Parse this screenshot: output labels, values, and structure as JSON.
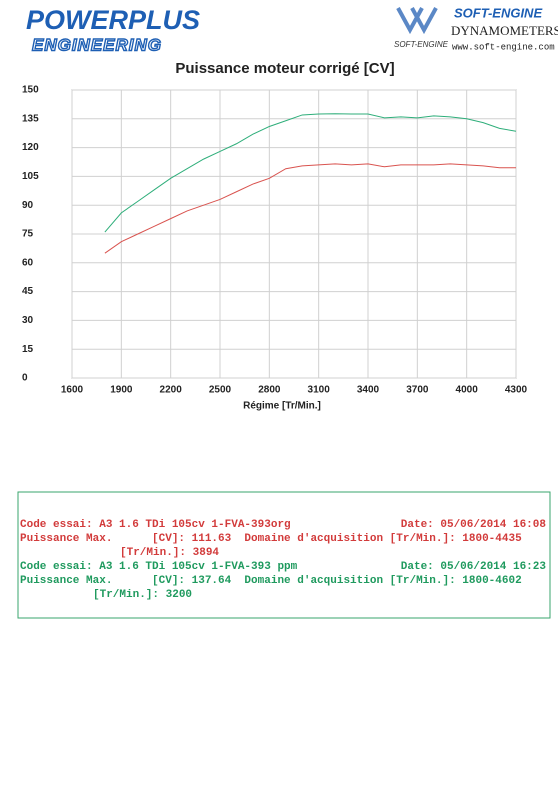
{
  "header": {
    "brand_top": "POWERPLUS",
    "brand_bottom": "ENGINEERING",
    "vendor": "SOFT-ENGINE",
    "vendor_small": "SOFT-ENGINE",
    "vendor_line": "DYNAMOMETERS",
    "website": "www.soft-engine.com"
  },
  "chart_data": {
    "type": "line",
    "title": "Puissance moteur corrigé [CV]",
    "x_label": "Régime [Tr/Min.]",
    "x": [
      1800,
      1900,
      2000,
      2100,
      2200,
      2300,
      2400,
      2500,
      2600,
      2700,
      2800,
      2900,
      3000,
      3100,
      3200,
      3300,
      3400,
      3500,
      3600,
      3700,
      3800,
      3900,
      4000,
      4100,
      4200,
      4300
    ],
    "series": [
      {
        "name": "A3 1.6 TDi 105cv 1-FVA-393 ppm",
        "color": "#2eae7a",
        "values": [
          76,
          86,
          92,
          98,
          104,
          109,
          114,
          118,
          122,
          127,
          131,
          134,
          137,
          137.5,
          137.6,
          137.5,
          137.5,
          135.5,
          136,
          135.5,
          136.5,
          136,
          135,
          133,
          130,
          128.5
        ]
      },
      {
        "name": "A3 1.6 TDi 105cv 1-FVA-393org",
        "color": "#d9534f",
        "values": [
          65,
          71,
          75,
          79,
          83,
          87,
          90,
          93,
          97,
          101,
          104,
          109,
          110.5,
          111,
          111.5,
          111,
          111.5,
          110,
          111,
          111,
          111,
          111.5,
          111,
          110.5,
          109.5,
          109.5
        ]
      }
    ],
    "xlim": [
      1600,
      4300
    ],
    "xticks": [
      1600,
      1900,
      2200,
      2500,
      2800,
      3100,
      3400,
      3700,
      4000,
      4300
    ],
    "ylim": [
      0,
      150
    ],
    "yticks": [
      0,
      15,
      30,
      45,
      60,
      75,
      90,
      105,
      120,
      135,
      150
    ],
    "grid": true
  },
  "info": {
    "tests": [
      {
        "color": "#d23b3b",
        "code": "Code essai: A3 1.6 TDi 105cv 1-FVA-393org",
        "date": "Date: 05/06/2014 16:08",
        "max": "Puissance Max.      [CV]: 111.63  Domaine d'acquisition [Tr/Min.]: 1800-4435",
        "rpm": "[Tr/Min.]: 3894"
      },
      {
        "color": "#1f9a5e",
        "code": "Code essai: A3 1.6 TDi 105cv 1-FVA-393 ppm",
        "date": "Date: 05/06/2014 16:23",
        "max": "Puissance Max.      [CV]: 137.64  Domaine d'acquisition [Tr/Min.]: 1800-4602",
        "rpm": "[Tr/Min.]: 3200"
      }
    ]
  }
}
